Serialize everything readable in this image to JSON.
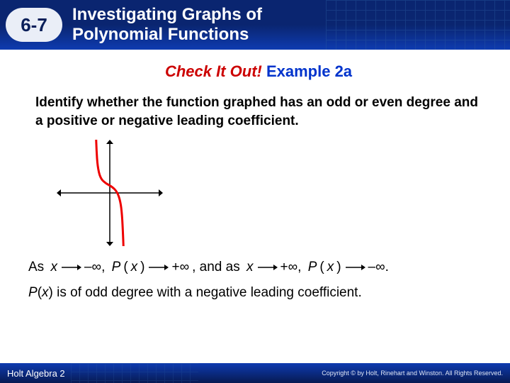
{
  "header": {
    "lesson_number": "6-7",
    "title_line1": "Investigating Graphs of",
    "title_line2": "Polynomial Functions",
    "badge_bg": "#eaeef7",
    "header_bg_top": "#0a2570",
    "header_bg_bottom": "#0e3bb0",
    "grid_color": "#2a5aa0"
  },
  "content": {
    "check_label": "Check It Out!",
    "example_label": " Example 2a",
    "check_color": "#cc0000",
    "example_color": "#0033cc",
    "prompt": "Identify whether the function graphed has an odd or even degree and a positive or negative leading coefficient.",
    "graph": {
      "type": "polynomial_sketch",
      "width": 150,
      "height": 150,
      "axis_color": "#000000",
      "curve_color": "#ee0000",
      "curve_width": 3,
      "description": "odd-degree negative-leading cubic-like: from top-left down through origin-area inflection to bottom-right",
      "x_range": [
        -5,
        5
      ],
      "y_range": [
        -5,
        5
      ],
      "curve_points": [
        [
          -1.3,
          5.5
        ],
        [
          -1.25,
          4.0
        ],
        [
          -1.15,
          2.5
        ],
        [
          -0.9,
          1.4
        ],
        [
          -0.4,
          0.9
        ],
        [
          0.2,
          0.6
        ],
        [
          0.7,
          0.1
        ],
        [
          1.0,
          -0.8
        ],
        [
          1.15,
          -2.0
        ],
        [
          1.25,
          -4.0
        ],
        [
          1.3,
          -5.5
        ]
      ]
    },
    "answer": {
      "as_x": "As ",
      "x": "x",
      "neg_inf": "–∞, ",
      "Px": "P",
      "paren_x": "(x)",
      "pos_inf": "+∞",
      "and_as": ", and as ",
      "to_pos": "+∞, ",
      "to_neg": "–∞.",
      "conclusion_pre": "P",
      "conclusion_paren": "(x)",
      "conclusion_rest": " is of odd degree with a negative leading coefficient."
    }
  },
  "footer": {
    "left": "Holt Algebra 2",
    "right": "Copyright © by Holt, Rinehart and Winston. All Rights Reserved."
  }
}
